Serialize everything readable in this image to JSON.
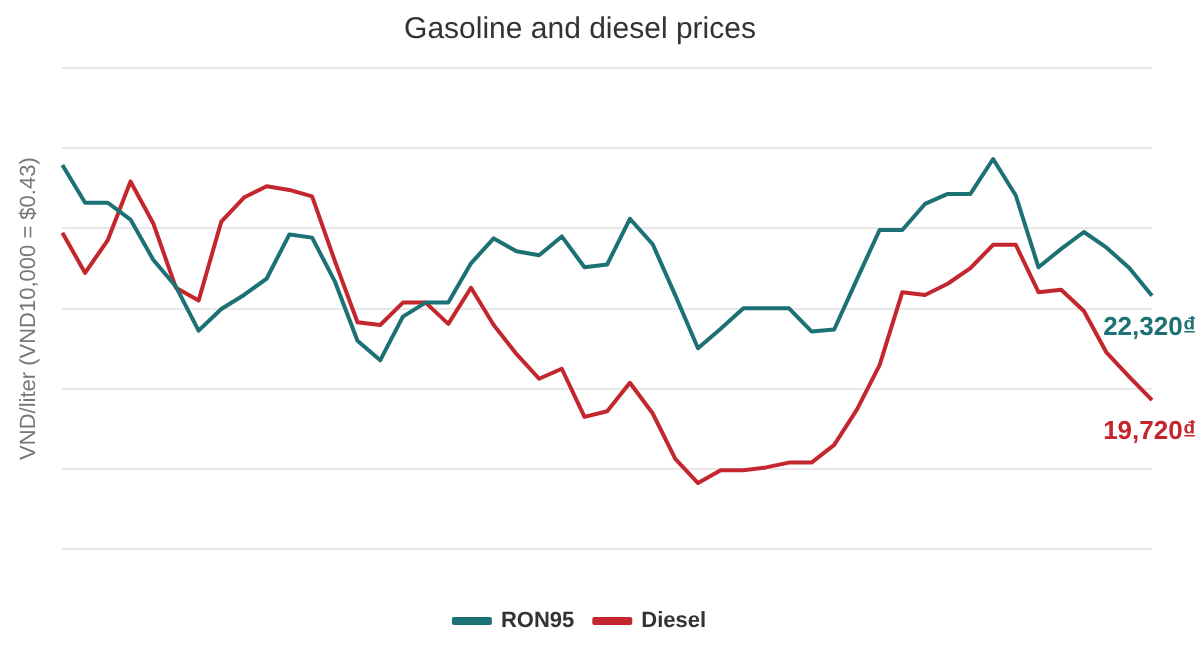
{
  "chart_data": {
    "type": "line",
    "title": "Gasoline and diesel prices",
    "ylabel": "VND/liter (VND10,000 = $0.43)",
    "grid": "y",
    "legend": "bottom",
    "marker": "none",
    "line_style": "solid",
    "ylim": [
      16000,
      28000
    ],
    "yticks": [
      {
        "value": 16000,
        "label": null
      },
      {
        "value": 18000,
        "label": null
      },
      {
        "value": 20000,
        "label": null
      },
      {
        "value": 22000,
        "label": null
      },
      {
        "value": 24000,
        "label": null
      },
      {
        "value": 26000,
        "label": null
      },
      {
        "value": 28000,
        "label": null
      }
    ],
    "categories": [
      null,
      null,
      null,
      null,
      null,
      null,
      null,
      null,
      null,
      null,
      null,
      null,
      null,
      null,
      null,
      null,
      null,
      null,
      null,
      null,
      null,
      null,
      null,
      null,
      null,
      null,
      null,
      null,
      null,
      null,
      null,
      null,
      null,
      null,
      null,
      null,
      null,
      null,
      null,
      null,
      null,
      null,
      null,
      null,
      null,
      null,
      null,
      null,
      null
    ],
    "series": [
      {
        "name": "RON95",
        "color": "#1b7173",
        "values": [
          25580,
          24640,
          24640,
          24220,
          23220,
          22550,
          21450,
          21990,
          22340,
          22750,
          23850,
          23770,
          22680,
          21200,
          20710,
          21800,
          22150,
          22150,
          23130,
          23750,
          23430,
          23330,
          23800,
          23030,
          23100,
          24240,
          23610,
          22330,
          21010,
          21500,
          22010,
          22010,
          22010,
          21430,
          21480,
          22730,
          23960,
          23960,
          24610,
          24860,
          24860,
          25730,
          24820,
          23030,
          23490,
          23910,
          23520,
          23010,
          22320
        ],
        "value_labels": [
          null,
          null,
          null,
          null,
          null,
          null,
          null,
          null,
          null,
          null,
          null,
          null,
          null,
          null,
          null,
          null,
          null,
          null,
          null,
          null,
          null,
          null,
          null,
          null,
          null,
          null,
          null,
          null,
          null,
          null,
          null,
          null,
          null,
          null,
          null,
          null,
          null,
          null,
          null,
          null,
          null,
          null,
          null,
          null,
          null,
          null,
          null,
          null,
          "22,320₫"
        ]
      },
      {
        "name": "Diesel",
        "color": "#c4262e",
        "values": [
          23890,
          22890,
          23710,
          25170,
          24130,
          22520,
          22200,
          24170,
          24770,
          25050,
          24960,
          24800,
          23190,
          21660,
          21590,
          22150,
          22150,
          21620,
          22520,
          21590,
          20870,
          20250,
          20500,
          19300,
          19440,
          20150,
          19390,
          18250,
          17650,
          17970,
          17970,
          18040,
          18160,
          18160,
          18600,
          19480,
          20590,
          22410,
          22340,
          22620,
          23010,
          23590,
          23590,
          22410,
          22470,
          21940,
          20900,
          20300,
          19720
        ],
        "value_labels": [
          null,
          null,
          null,
          null,
          null,
          null,
          null,
          null,
          null,
          null,
          null,
          null,
          null,
          null,
          null,
          null,
          null,
          null,
          null,
          null,
          null,
          null,
          null,
          null,
          null,
          null,
          null,
          null,
          null,
          null,
          null,
          null,
          null,
          null,
          null,
          null,
          null,
          null,
          null,
          null,
          null,
          null,
          null,
          null,
          null,
          null,
          null,
          null,
          "19,720₫"
        ]
      }
    ]
  }
}
